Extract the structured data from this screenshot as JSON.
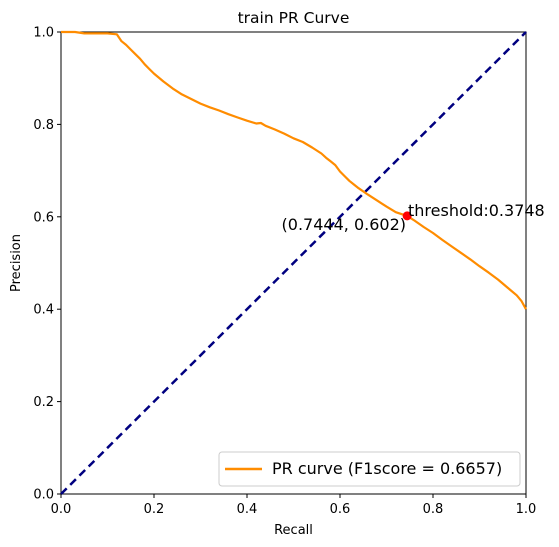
{
  "chart_data": {
    "type": "line",
    "title": "train PR Curve",
    "xlabel": "Recall",
    "ylabel": "Precision",
    "xlim": [
      0.0,
      1.0
    ],
    "ylim": [
      0.0,
      1.0
    ],
    "xticks": [
      "0.0",
      "0.2",
      "0.4",
      "0.6",
      "0.8",
      "1.0"
    ],
    "yticks": [
      "0.0",
      "0.2",
      "0.4",
      "0.6",
      "0.8",
      "1.0"
    ],
    "grid": false,
    "legend_position": "lower-right",
    "series": [
      {
        "name": "PR curve (F1score = 0.6657)",
        "color": "#ff8c00",
        "x": [
          0.0,
          0.03,
          0.05,
          0.08,
          0.1,
          0.12,
          0.13,
          0.14,
          0.15,
          0.16,
          0.17,
          0.18,
          0.19,
          0.2,
          0.22,
          0.24,
          0.26,
          0.28,
          0.3,
          0.32,
          0.34,
          0.36,
          0.38,
          0.4,
          0.42,
          0.43,
          0.44,
          0.46,
          0.48,
          0.5,
          0.52,
          0.54,
          0.56,
          0.57,
          0.58,
          0.59,
          0.6,
          0.61,
          0.62,
          0.63,
          0.64,
          0.66,
          0.68,
          0.7,
          0.72,
          0.7444,
          0.76,
          0.78,
          0.8,
          0.82,
          0.84,
          0.86,
          0.88,
          0.9,
          0.92,
          0.94,
          0.96,
          0.98,
          0.99,
          1.0
        ],
        "y": [
          1.0,
          1.0,
          0.997,
          0.997,
          0.997,
          0.995,
          0.98,
          0.972,
          0.962,
          0.952,
          0.942,
          0.93,
          0.92,
          0.91,
          0.893,
          0.878,
          0.865,
          0.855,
          0.845,
          0.837,
          0.83,
          0.822,
          0.815,
          0.808,
          0.802,
          0.803,
          0.797,
          0.789,
          0.78,
          0.77,
          0.762,
          0.75,
          0.737,
          0.728,
          0.72,
          0.712,
          0.698,
          0.688,
          0.678,
          0.67,
          0.662,
          0.648,
          0.635,
          0.622,
          0.61,
          0.602,
          0.592,
          0.578,
          0.565,
          0.55,
          0.536,
          0.522,
          0.508,
          0.493,
          0.479,
          0.464,
          0.447,
          0.43,
          0.418,
          0.4
        ]
      },
      {
        "color": "#000080",
        "style": "dashed",
        "x": [
          0.0,
          1.0
        ],
        "y": [
          0.0,
          1.0
        ]
      }
    ],
    "point": {
      "x": 0.7444,
      "y": 0.602,
      "color": "#ff0000"
    },
    "annotations": {
      "threshold": "threshold:0.3748",
      "coordinate": "(0.7444, 0.602)"
    }
  }
}
